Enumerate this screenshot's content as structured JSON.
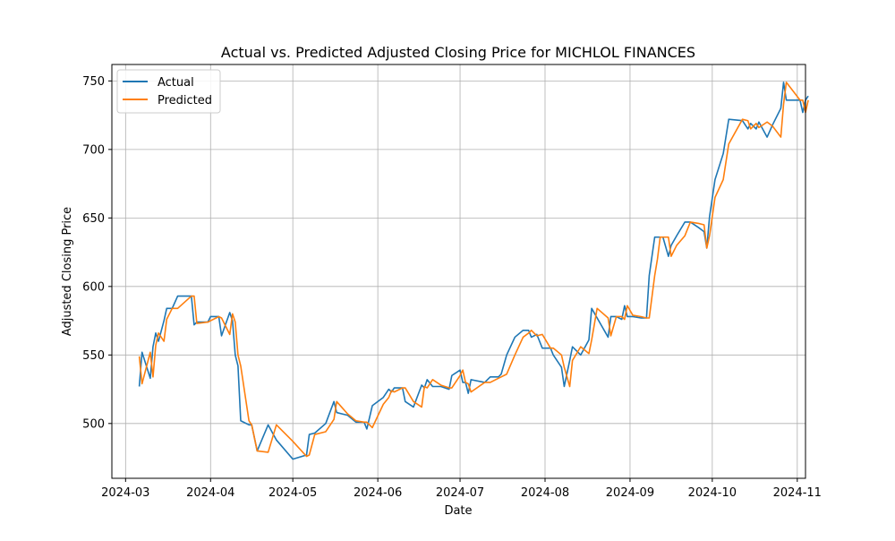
{
  "chart_data": {
    "type": "line",
    "title": "Actual vs. Predicted Adjusted Closing Price for MICHLOL FINANCES",
    "xlabel": "Date",
    "ylabel": "Adjusted Closing Price",
    "x_range": [
      "2024-02-25",
      "2024-11-04"
    ],
    "ylim": [
      460,
      762
    ],
    "x_ticks": [
      "2024-03-01",
      "2024-04-01",
      "2024-05-01",
      "2024-06-01",
      "2024-07-01",
      "2024-08-01",
      "2024-09-01",
      "2024-10-01",
      "2024-11-01"
    ],
    "x_tick_labels": [
      "2024-03",
      "2024-04",
      "2024-05",
      "2024-06",
      "2024-07",
      "2024-08",
      "2024-09",
      "2024-10",
      "2024-11"
    ],
    "y_ticks": [
      500,
      550,
      600,
      650,
      700,
      750
    ],
    "grid": true,
    "legend_position": "top-left",
    "series": [
      {
        "name": "Actual",
        "color": "#1f77b4",
        "points": [
          [
            "2024-03-06",
            527
          ],
          [
            "2024-03-07",
            552
          ],
          [
            "2024-03-10",
            533
          ],
          [
            "2024-03-11",
            556
          ],
          [
            "2024-03-12",
            566
          ],
          [
            "2024-03-13",
            560
          ],
          [
            "2024-03-15",
            575
          ],
          [
            "2024-03-16",
            584
          ],
          [
            "2024-03-18",
            584
          ],
          [
            "2024-03-20",
            593
          ],
          [
            "2024-03-25",
            593
          ],
          [
            "2024-03-26",
            572
          ],
          [
            "2024-03-27",
            574
          ],
          [
            "2024-03-31",
            574
          ],
          [
            "2024-04-01",
            578
          ],
          [
            "2024-04-04",
            578
          ],
          [
            "2024-04-05",
            564
          ],
          [
            "2024-04-08",
            581
          ],
          [
            "2024-04-09",
            575
          ],
          [
            "2024-04-10",
            550
          ],
          [
            "2024-04-11",
            542
          ],
          [
            "2024-04-12",
            502
          ],
          [
            "2024-04-15",
            499
          ],
          [
            "2024-04-16",
            499
          ],
          [
            "2024-04-18",
            480
          ],
          [
            "2024-04-22",
            499
          ],
          [
            "2024-04-25",
            488
          ],
          [
            "2024-05-01",
            474
          ],
          [
            "2024-05-06",
            477
          ],
          [
            "2024-05-07",
            492
          ],
          [
            "2024-05-09",
            493
          ],
          [
            "2024-05-13",
            500
          ],
          [
            "2024-05-16",
            516
          ],
          [
            "2024-05-17",
            508
          ],
          [
            "2024-05-21",
            506
          ],
          [
            "2024-05-24",
            501
          ],
          [
            "2024-05-27",
            501
          ],
          [
            "2024-05-28",
            496
          ],
          [
            "2024-05-30",
            513
          ],
          [
            "2024-06-03",
            519
          ],
          [
            "2024-06-05",
            525
          ],
          [
            "2024-06-06",
            523
          ],
          [
            "2024-06-07",
            526
          ],
          [
            "2024-06-10",
            526
          ],
          [
            "2024-06-11",
            516
          ],
          [
            "2024-06-14",
            512
          ],
          [
            "2024-06-17",
            528
          ],
          [
            "2024-06-18",
            526
          ],
          [
            "2024-06-19",
            532
          ],
          [
            "2024-06-21",
            527
          ],
          [
            "2024-06-24",
            527
          ],
          [
            "2024-06-27",
            525
          ],
          [
            "2024-06-28",
            535
          ],
          [
            "2024-07-01",
            539
          ],
          [
            "2024-07-02",
            530
          ],
          [
            "2024-07-03",
            530
          ],
          [
            "2024-07-04",
            522
          ],
          [
            "2024-07-05",
            532
          ],
          [
            "2024-07-10",
            530
          ],
          [
            "2024-07-12",
            534
          ],
          [
            "2024-07-15",
            534
          ],
          [
            "2024-07-16",
            536
          ],
          [
            "2024-07-18",
            550
          ],
          [
            "2024-07-21",
            563
          ],
          [
            "2024-07-24",
            568
          ],
          [
            "2024-07-26",
            568
          ],
          [
            "2024-07-27",
            563
          ],
          [
            "2024-07-29",
            565
          ],
          [
            "2024-07-31",
            555
          ],
          [
            "2024-08-03",
            555
          ],
          [
            "2024-08-04",
            550
          ],
          [
            "2024-08-07",
            541
          ],
          [
            "2024-08-08",
            527
          ],
          [
            "2024-08-10",
            546
          ],
          [
            "2024-08-11",
            556
          ],
          [
            "2024-08-14",
            550
          ],
          [
            "2024-08-17",
            561
          ],
          [
            "2024-08-18",
            584
          ],
          [
            "2024-08-20",
            577
          ],
          [
            "2024-08-24",
            563
          ],
          [
            "2024-08-25",
            578
          ],
          [
            "2024-08-27",
            578
          ],
          [
            "2024-08-29",
            576
          ],
          [
            "2024-08-30",
            586
          ],
          [
            "2024-08-31",
            578
          ],
          [
            "2024-09-02",
            578
          ],
          [
            "2024-09-05",
            577
          ],
          [
            "2024-09-07",
            577
          ],
          [
            "2024-09-08",
            608
          ],
          [
            "2024-09-10",
            636
          ],
          [
            "2024-09-11",
            636
          ],
          [
            "2024-09-12",
            636
          ],
          [
            "2024-09-13",
            636
          ],
          [
            "2024-09-15",
            622
          ],
          [
            "2024-09-16",
            630
          ],
          [
            "2024-09-18",
            637
          ],
          [
            "2024-09-21",
            647
          ],
          [
            "2024-09-23",
            647
          ],
          [
            "2024-09-26",
            643
          ],
          [
            "2024-09-28",
            640
          ],
          [
            "2024-09-29",
            628
          ],
          [
            "2024-09-30",
            651
          ],
          [
            "2024-10-02",
            678
          ],
          [
            "2024-10-05",
            697
          ],
          [
            "2024-10-07",
            722
          ],
          [
            "2024-10-12",
            721
          ],
          [
            "2024-10-14",
            715
          ],
          [
            "2024-10-15",
            719
          ],
          [
            "2024-10-17",
            715
          ],
          [
            "2024-10-18",
            720
          ],
          [
            "2024-10-21",
            709
          ],
          [
            "2024-10-23",
            718
          ],
          [
            "2024-10-26",
            730
          ],
          [
            "2024-10-27",
            749
          ],
          [
            "2024-10-28",
            736
          ],
          [
            "2024-11-02",
            736
          ],
          [
            "2024-11-03",
            727
          ],
          [
            "2024-11-04",
            736
          ],
          [
            "2024-11-05",
            739
          ]
        ]
      },
      {
        "name": "Predicted",
        "color": "#ff7f0e",
        "points": [
          [
            "2024-03-06",
            549
          ],
          [
            "2024-03-07",
            529
          ],
          [
            "2024-03-10",
            552
          ],
          [
            "2024-03-11",
            534
          ],
          [
            "2024-03-12",
            557
          ],
          [
            "2024-03-13",
            566
          ],
          [
            "2024-03-15",
            560
          ],
          [
            "2024-03-16",
            576
          ],
          [
            "2024-03-18",
            584
          ],
          [
            "2024-03-20",
            584
          ],
          [
            "2024-03-25",
            593
          ],
          [
            "2024-03-26",
            593
          ],
          [
            "2024-03-27",
            573
          ],
          [
            "2024-03-31",
            574
          ],
          [
            "2024-04-01",
            575
          ],
          [
            "2024-04-04",
            578
          ],
          [
            "2024-04-05",
            577
          ],
          [
            "2024-04-08",
            565
          ],
          [
            "2024-04-09",
            580
          ],
          [
            "2024-04-10",
            574
          ],
          [
            "2024-04-11",
            550
          ],
          [
            "2024-04-12",
            542
          ],
          [
            "2024-04-15",
            502
          ],
          [
            "2024-04-16",
            499
          ],
          [
            "2024-04-18",
            480
          ],
          [
            "2024-04-22",
            479
          ],
          [
            "2024-04-25",
            499
          ],
          [
            "2024-05-01",
            487
          ],
          [
            "2024-05-06",
            476
          ],
          [
            "2024-05-07",
            477
          ],
          [
            "2024-05-09",
            492
          ],
          [
            "2024-05-13",
            494
          ],
          [
            "2024-05-16",
            503
          ],
          [
            "2024-05-17",
            516
          ],
          [
            "2024-05-21",
            507
          ],
          [
            "2024-05-24",
            502
          ],
          [
            "2024-05-27",
            501
          ],
          [
            "2024-05-28",
            501
          ],
          [
            "2024-05-30",
            497
          ],
          [
            "2024-06-03",
            514
          ],
          [
            "2024-06-05",
            519
          ],
          [
            "2024-06-06",
            524
          ],
          [
            "2024-06-07",
            523
          ],
          [
            "2024-06-10",
            526
          ],
          [
            "2024-06-11",
            526
          ],
          [
            "2024-06-14",
            516
          ],
          [
            "2024-06-17",
            512
          ],
          [
            "2024-06-18",
            527
          ],
          [
            "2024-06-19",
            526
          ],
          [
            "2024-06-21",
            532
          ],
          [
            "2024-06-24",
            528
          ],
          [
            "2024-06-27",
            526
          ],
          [
            "2024-06-28",
            526
          ],
          [
            "2024-07-01",
            535
          ],
          [
            "2024-07-02",
            539
          ],
          [
            "2024-07-03",
            530
          ],
          [
            "2024-07-04",
            529
          ],
          [
            "2024-07-05",
            523
          ],
          [
            "2024-07-10",
            530
          ],
          [
            "2024-07-12",
            530
          ],
          [
            "2024-07-15",
            533
          ],
          [
            "2024-07-16",
            534
          ],
          [
            "2024-07-18",
            536
          ],
          [
            "2024-07-21",
            550
          ],
          [
            "2024-07-24",
            563
          ],
          [
            "2024-07-26",
            566
          ],
          [
            "2024-07-27",
            568
          ],
          [
            "2024-07-29",
            564
          ],
          [
            "2024-07-31",
            565
          ],
          [
            "2024-08-03",
            555
          ],
          [
            "2024-08-04",
            555
          ],
          [
            "2024-08-07",
            550
          ],
          [
            "2024-08-08",
            541
          ],
          [
            "2024-08-10",
            527
          ],
          [
            "2024-08-11",
            546
          ],
          [
            "2024-08-14",
            556
          ],
          [
            "2024-08-17",
            551
          ],
          [
            "2024-08-18",
            561
          ],
          [
            "2024-08-20",
            584
          ],
          [
            "2024-08-24",
            577
          ],
          [
            "2024-08-25",
            564
          ],
          [
            "2024-08-27",
            578
          ],
          [
            "2024-08-29",
            578
          ],
          [
            "2024-08-30",
            576
          ],
          [
            "2024-08-31",
            586
          ],
          [
            "2024-09-02",
            579
          ],
          [
            "2024-09-05",
            578
          ],
          [
            "2024-09-07",
            577
          ],
          [
            "2024-09-08",
            577
          ],
          [
            "2024-09-10",
            608
          ],
          [
            "2024-09-11",
            620
          ],
          [
            "2024-09-12",
            636
          ],
          [
            "2024-09-13",
            636
          ],
          [
            "2024-09-15",
            636
          ],
          [
            "2024-09-16",
            622
          ],
          [
            "2024-09-18",
            630
          ],
          [
            "2024-09-21",
            637
          ],
          [
            "2024-09-23",
            647
          ],
          [
            "2024-09-26",
            646
          ],
          [
            "2024-09-28",
            645
          ],
          [
            "2024-09-29",
            628
          ],
          [
            "2024-09-30",
            637
          ],
          [
            "2024-10-02",
            665
          ],
          [
            "2024-10-05",
            678
          ],
          [
            "2024-10-07",
            704
          ],
          [
            "2024-10-12",
            722
          ],
          [
            "2024-10-14",
            721
          ],
          [
            "2024-10-15",
            715
          ],
          [
            "2024-10-17",
            719
          ],
          [
            "2024-10-18",
            716
          ],
          [
            "2024-10-21",
            720
          ],
          [
            "2024-10-23",
            717
          ],
          [
            "2024-10-26",
            709
          ],
          [
            "2024-10-27",
            733
          ],
          [
            "2024-10-28",
            749
          ],
          [
            "2024-11-02",
            736
          ],
          [
            "2024-11-03",
            736
          ],
          [
            "2024-11-04",
            727
          ],
          [
            "2024-11-05",
            736
          ]
        ]
      }
    ]
  }
}
